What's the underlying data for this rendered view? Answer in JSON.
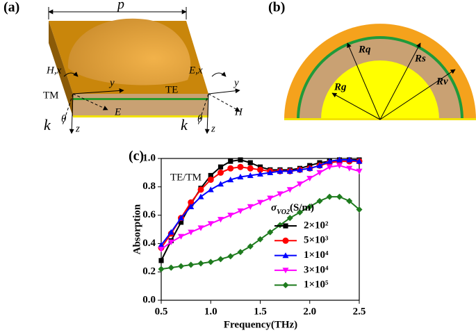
{
  "panel_a": {
    "label": "(a)",
    "period": "p",
    "hx": "H,x",
    "ex": "E,x",
    "y_left": "y",
    "y_right": "y",
    "tm": "TM",
    "te": "TE",
    "e": "E",
    "h": "H",
    "k_left": "k",
    "theta_left": "θ",
    "z_left": "z",
    "k_right": "k",
    "theta_right": "θ",
    "z_right": "z"
  },
  "panel_b": {
    "label": "(b)",
    "rq": "Rq",
    "rs": "Rs",
    "rg": "Rg",
    "rv": "Rv"
  },
  "chart_data": {
    "type": "line",
    "panel_label": "(c)",
    "annotation": "TE/TM",
    "x_label": "Frequency(THz)",
    "y_label": "Absorption",
    "legend_title": [
      "σ",
      "VO2",
      "(S/m)"
    ],
    "legend": "center right",
    "xlim": [
      0.5,
      2.5
    ],
    "ylim": [
      0,
      1
    ],
    "xticks": [
      0.5,
      {
        "value": 1,
        "label": "1.0"
      },
      1.5,
      {
        "value": 2,
        "label": "2.0"
      },
      2.5
    ],
    "yticks": [
      {
        "value": 0,
        "label": "0.0"
      },
      0.2,
      0.4,
      0.6,
      0.8,
      {
        "value": 1,
        "label": "1.0"
      }
    ],
    "x": [
      0.5,
      0.6,
      0.7,
      0.8,
      0.9,
      1.0,
      1.1,
      1.2,
      1.3,
      1.4,
      1.5,
      1.6,
      1.7,
      1.8,
      1.9,
      2.0,
      2.1,
      2.2,
      2.3,
      2.4,
      2.5
    ],
    "series": [
      {
        "name": "2×10²",
        "color": "#000000",
        "marker": "square",
        "values": [
          0.28,
          0.42,
          0.55,
          0.68,
          0.79,
          0.88,
          0.94,
          0.98,
          0.99,
          0.97,
          0.94,
          0.92,
          0.92,
          0.92,
          0.93,
          0.95,
          0.97,
          0.98,
          0.99,
          0.99,
          0.99
        ]
      },
      {
        "name": "5×10³",
        "color": "#ff0000",
        "marker": "circle",
        "values": [
          0.37,
          0.47,
          0.58,
          0.69,
          0.78,
          0.85,
          0.9,
          0.93,
          0.94,
          0.93,
          0.92,
          0.91,
          0.91,
          0.91,
          0.92,
          0.93,
          0.95,
          0.97,
          0.98,
          0.98,
          0.98
        ]
      },
      {
        "name": "1×10⁴",
        "color": "#0000ff",
        "marker": "triangle-up",
        "values": [
          0.39,
          0.48,
          0.58,
          0.66,
          0.73,
          0.78,
          0.82,
          0.85,
          0.87,
          0.88,
          0.89,
          0.9,
          0.91,
          0.91,
          0.92,
          0.93,
          0.95,
          0.98,
          0.99,
          0.99,
          0.98
        ]
      },
      {
        "name": "3×10⁴",
        "color": "#ff00ff",
        "marker": "triangle-down",
        "values": [
          0.36,
          0.41,
          0.45,
          0.48,
          0.51,
          0.54,
          0.57,
          0.6,
          0.63,
          0.66,
          0.69,
          0.72,
          0.75,
          0.78,
          0.82,
          0.86,
          0.9,
          0.94,
          0.95,
          0.93,
          0.91
        ]
      },
      {
        "name": "1×10⁵",
        "color": "#1e7b1e",
        "marker": "diamond",
        "values": [
          0.22,
          0.23,
          0.24,
          0.25,
          0.26,
          0.27,
          0.29,
          0.31,
          0.34,
          0.38,
          0.43,
          0.48,
          0.53,
          0.58,
          0.62,
          0.66,
          0.7,
          0.73,
          0.73,
          0.7,
          0.64
        ]
      }
    ]
  }
}
